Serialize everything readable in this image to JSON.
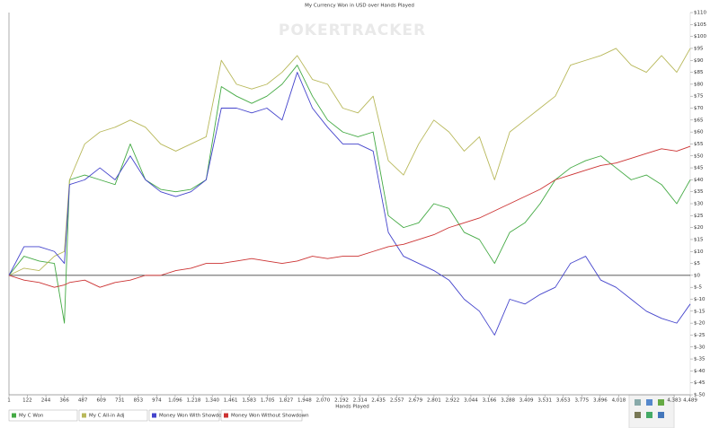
{
  "chart_data": {
    "type": "line",
    "title": "My Currency Won in USD over Hands Played",
    "watermark": "POKERTRACKER",
    "x_label": "Hands Played",
    "legend": "bottom-left",
    "xlim": [
      1,
      4489
    ],
    "ylim": [
      -50,
      110
    ],
    "xticks": [
      1,
      122,
      244,
      366,
      487,
      609,
      731,
      853,
      974,
      {
        "value": 1096,
        "label": "1,096"
      },
      {
        "value": 1218,
        "label": "1,218"
      },
      {
        "value": 1340,
        "label": "1,340"
      },
      {
        "value": 1461,
        "label": "1,461"
      },
      {
        "value": 1583,
        "label": "1,583"
      },
      {
        "value": 1705,
        "label": "1,705"
      },
      {
        "value": 1827,
        "label": "1,827"
      },
      {
        "value": 1948,
        "label": "1,948"
      },
      {
        "value": 2070,
        "label": "2,070"
      },
      {
        "value": 2192,
        "label": "2,192"
      },
      {
        "value": 2314,
        "label": "2,314"
      },
      {
        "value": 2435,
        "label": "2,435"
      },
      {
        "value": 2557,
        "label": "2,557"
      },
      {
        "value": 2679,
        "label": "2,679"
      },
      {
        "value": 2801,
        "label": "2,801"
      },
      {
        "value": 2922,
        "label": "2,922"
      },
      {
        "value": 3044,
        "label": "3,044"
      },
      {
        "value": 3166,
        "label": "3,166"
      },
      {
        "value": 3288,
        "label": "3,288"
      },
      {
        "value": 3409,
        "label": "3,409"
      },
      {
        "value": 3531,
        "label": "3,531"
      },
      {
        "value": 3653,
        "label": "3,653"
      },
      {
        "value": 3775,
        "label": "3,775"
      },
      {
        "value": 3896,
        "label": "3,896"
      },
      {
        "value": 4018,
        "label": "4,018"
      },
      {
        "value": 4383,
        "label": "4,383"
      },
      {
        "value": 4489,
        "label": "4,489"
      }
    ],
    "yticks": [
      {
        "value": 110,
        "label": "$110"
      },
      {
        "value": 105,
        "label": "$105"
      },
      {
        "value": 100,
        "label": "$100"
      },
      {
        "value": 95,
        "label": "$95"
      },
      {
        "value": 90,
        "label": "$90"
      },
      {
        "value": 85,
        "label": "$85"
      },
      {
        "value": 80,
        "label": "$80"
      },
      {
        "value": 75,
        "label": "$75"
      },
      {
        "value": 70,
        "label": "$70"
      },
      {
        "value": 65,
        "label": "$65"
      },
      {
        "value": 60,
        "label": "$60"
      },
      {
        "value": 55,
        "label": "$55"
      },
      {
        "value": 50,
        "label": "$50"
      },
      {
        "value": 45,
        "label": "$45"
      },
      {
        "value": 40,
        "label": "$40"
      },
      {
        "value": 35,
        "label": "$35"
      },
      {
        "value": 30,
        "label": "$30"
      },
      {
        "value": 25,
        "label": "$25"
      },
      {
        "value": 20,
        "label": "$20"
      },
      {
        "value": 15,
        "label": "$15"
      },
      {
        "value": 10,
        "label": "$10"
      },
      {
        "value": 5,
        "label": "$5"
      },
      {
        "value": 0,
        "label": "$0"
      },
      {
        "value": -5,
        "label": "$-5"
      },
      {
        "value": -10,
        "label": "$-10"
      },
      {
        "value": -15,
        "label": "$-15"
      },
      {
        "value": -20,
        "label": "$-20"
      },
      {
        "value": -25,
        "label": "$-25"
      },
      {
        "value": -30,
        "label": "$-30"
      },
      {
        "value": -35,
        "label": "$-35"
      },
      {
        "value": -40,
        "label": "$-40"
      },
      {
        "value": -45,
        "label": "$-45"
      },
      {
        "value": -50,
        "label": "$-50"
      }
    ],
    "x": [
      1,
      100,
      200,
      300,
      366,
      400,
      500,
      600,
      700,
      800,
      900,
      1000,
      1100,
      1200,
      1300,
      1400,
      1500,
      1600,
      1700,
      1800,
      1900,
      2000,
      2100,
      2200,
      2300,
      2400,
      2500,
      2600,
      2700,
      2800,
      2900,
      3000,
      3100,
      3200,
      3300,
      3400,
      3500,
      3600,
      3700,
      3800,
      3900,
      4000,
      4100,
      4200,
      4300,
      4400,
      4489
    ],
    "series": [
      {
        "name": "My C Won",
        "color": "#44aa44",
        "values": [
          0,
          8,
          6,
          5,
          -20,
          40,
          42,
          40,
          38,
          55,
          40,
          36,
          35,
          36,
          40,
          79,
          75,
          72,
          75,
          80,
          88,
          75,
          65,
          60,
          58,
          60,
          25,
          20,
          22,
          30,
          28,
          18,
          15,
          5,
          18,
          22,
          30,
          40,
          45,
          48,
          50,
          45,
          40,
          42,
          38,
          30,
          40
        ]
      },
      {
        "name": "My C All-in Adj",
        "color": "#b8b85a",
        "values": [
          0,
          3,
          2,
          8,
          10,
          40,
          55,
          60,
          62,
          65,
          62,
          55,
          52,
          55,
          58,
          90,
          80,
          78,
          80,
          85,
          92,
          82,
          80,
          70,
          68,
          75,
          48,
          42,
          55,
          65,
          60,
          52,
          58,
          40,
          60,
          65,
          70,
          75,
          88,
          90,
          92,
          95,
          88,
          85,
          92,
          85,
          95
        ]
      },
      {
        "name": "Money Won With Showdown",
        "color": "#4444cc",
        "values": [
          0,
          12,
          12,
          10,
          5,
          38,
          40,
          45,
          40,
          50,
          40,
          35,
          33,
          35,
          40,
          70,
          70,
          68,
          70,
          65,
          85,
          70,
          62,
          55,
          55,
          52,
          18,
          8,
          5,
          2,
          -2,
          -10,
          -15,
          -25,
          -10,
          -12,
          -8,
          -5,
          5,
          8,
          -2,
          -5,
          -10,
          -15,
          -18,
          -20,
          -12
        ]
      },
      {
        "name": "Money Won Without Showdown",
        "color": "#cc3333",
        "values": [
          0,
          -2,
          -3,
          -5,
          -4,
          -3,
          -2,
          -5,
          -3,
          -2,
          0,
          0,
          2,
          3,
          5,
          5,
          6,
          7,
          6,
          5,
          6,
          8,
          7,
          8,
          8,
          10,
          12,
          13,
          15,
          17,
          20,
          22,
          24,
          27,
          30,
          33,
          36,
          40,
          42,
          44,
          46,
          47,
          49,
          51,
          53,
          52,
          54
        ]
      }
    ]
  }
}
